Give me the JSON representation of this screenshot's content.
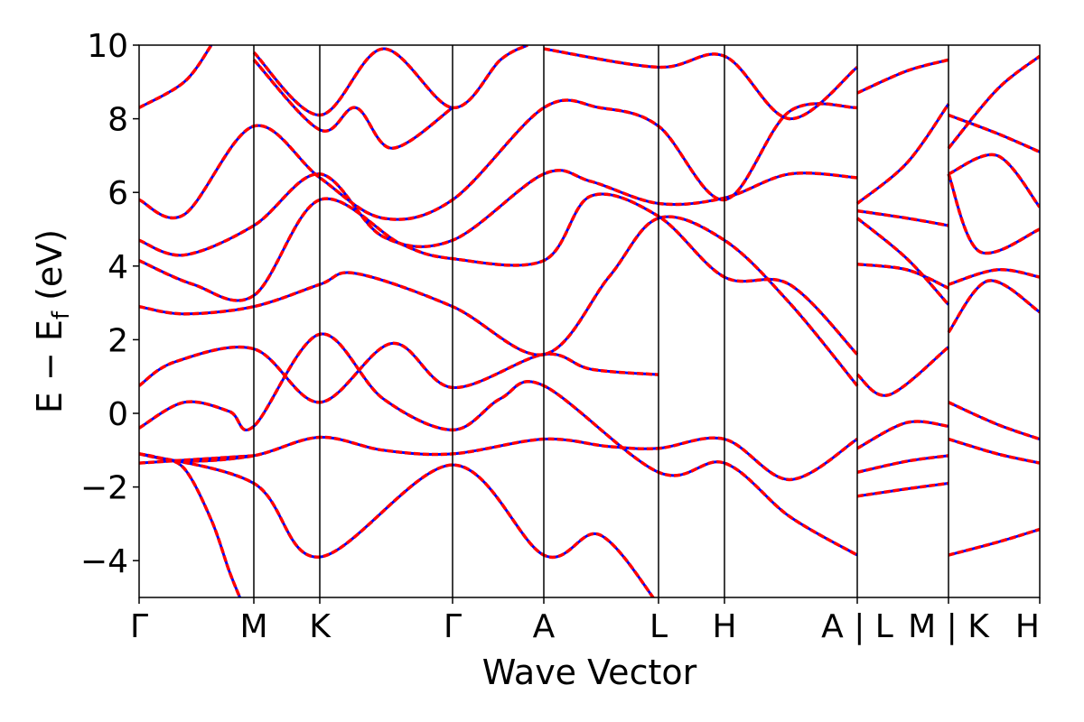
{
  "chart_data": {
    "type": "line",
    "title": "",
    "xlabel": "Wave Vector",
    "ylabel_parts": {
      "pre": "E − E",
      "sub": "f",
      "post": " (eV)"
    },
    "ylim": [
      -5,
      10
    ],
    "yticks": [
      -4,
      -2,
      0,
      2,
      4,
      6,
      8,
      10
    ],
    "ytick_labels": [
      "−4",
      "−2",
      "0",
      "2",
      "4",
      "6",
      "8",
      "10"
    ],
    "kpath": [
      {
        "label": "Γ",
        "x": 0.0
      },
      {
        "label": "M",
        "x": 0.127
      },
      {
        "label": "K",
        "x": 0.2
      },
      {
        "label": "Γ",
        "x": 0.347
      },
      {
        "label": "A",
        "x": 0.448
      },
      {
        "label": "L",
        "x": 0.575
      },
      {
        "label": "H",
        "x": 0.648
      },
      {
        "label": "A | L",
        "x": 0.795
      },
      {
        "label": "M | K",
        "x": 0.896
      },
      {
        "label": "H",
        "x": 0.997
      }
    ],
    "x_max": 0.997,
    "series_colors": {
      "band_a": "#ff0000",
      "band_b": "#0000ff"
    },
    "bands": [
      [
        [
          0.0,
          -1.1
        ],
        [
          0.02,
          -1.2
        ],
        [
          0.05,
          -1.5
        ],
        [
          0.08,
          -2.9
        ],
        [
          0.1,
          -4.3
        ],
        [
          0.115,
          -5.2
        ]
      ],
      [
        [
          0.0,
          -1.1
        ],
        [
          0.05,
          -1.3
        ],
        [
          0.127,
          -1.15
        ],
        [
          0.2,
          -0.65
        ],
        [
          0.27,
          -1.0
        ],
        [
          0.347,
          -1.1
        ],
        [
          0.448,
          -0.7
        ],
        [
          0.52,
          -0.9
        ],
        [
          0.575,
          -0.95
        ],
        [
          0.648,
          -0.7
        ],
        [
          0.72,
          -1.8
        ],
        [
          0.795,
          -0.7
        ]
      ],
      [
        [
          0.0,
          -1.35
        ],
        [
          0.127,
          -1.15
        ]
      ],
      [
        [
          0.0,
          -1.1
        ],
        [
          0.127,
          -1.9
        ],
        [
          0.2,
          -3.9
        ],
        [
          0.347,
          -1.4
        ],
        [
          0.448,
          -3.85
        ],
        [
          0.51,
          -3.3
        ],
        [
          0.575,
          -5.2
        ]
      ],
      [
        [
          0.0,
          -0.4
        ],
        [
          0.05,
          0.3
        ],
        [
          0.1,
          0.05
        ],
        [
          0.127,
          -0.35
        ],
        [
          0.2,
          2.15
        ],
        [
          0.27,
          0.4
        ],
        [
          0.347,
          -0.45
        ],
        [
          0.4,
          0.4
        ],
        [
          0.448,
          0.75
        ],
        [
          0.575,
          -1.6
        ],
        [
          0.648,
          -1.35
        ],
        [
          0.72,
          -2.8
        ],
        [
          0.795,
          -3.85
        ]
      ],
      [
        [
          0.0,
          0.75
        ],
        [
          0.04,
          1.4
        ],
        [
          0.127,
          1.75
        ],
        [
          0.2,
          0.3
        ],
        [
          0.28,
          1.9
        ],
        [
          0.347,
          0.7
        ],
        [
          0.448,
          1.6
        ],
        [
          0.5,
          1.2
        ],
        [
          0.575,
          1.05
        ]
      ],
      [
        [
          0.0,
          2.9
        ],
        [
          0.05,
          2.7
        ],
        [
          0.127,
          2.9
        ],
        [
          0.2,
          3.5
        ],
        [
          0.24,
          3.8
        ],
        [
          0.347,
          2.9
        ],
        [
          0.448,
          1.6
        ],
        [
          0.52,
          3.7
        ],
        [
          0.575,
          5.3
        ],
        [
          0.648,
          4.7
        ],
        [
          0.72,
          3.0
        ],
        [
          0.795,
          0.75
        ]
      ],
      [
        [
          0.0,
          4.15
        ],
        [
          0.06,
          3.5
        ],
        [
          0.127,
          3.2
        ],
        [
          0.2,
          5.8
        ],
        [
          0.29,
          4.6
        ],
        [
          0.347,
          4.2
        ],
        [
          0.448,
          4.15
        ],
        [
          0.5,
          5.9
        ],
        [
          0.575,
          5.35
        ],
        [
          0.648,
          3.7
        ],
        [
          0.72,
          3.5
        ],
        [
          0.795,
          1.6
        ]
      ],
      [
        [
          0.0,
          4.7
        ],
        [
          0.05,
          4.3
        ],
        [
          0.127,
          5.1
        ],
        [
          0.2,
          6.5
        ],
        [
          0.27,
          4.8
        ],
        [
          0.347,
          4.7
        ],
        [
          0.448,
          6.5
        ],
        [
          0.5,
          6.3
        ],
        [
          0.575,
          5.7
        ],
        [
          0.648,
          5.85
        ],
        [
          0.72,
          6.5
        ],
        [
          0.795,
          6.4
        ]
      ],
      [
        [
          0.0,
          5.8
        ],
        [
          0.05,
          5.4
        ],
        [
          0.127,
          7.8
        ],
        [
          0.2,
          6.4
        ],
        [
          0.27,
          5.3
        ],
        [
          0.347,
          5.8
        ],
        [
          0.448,
          8.3
        ],
        [
          0.51,
          8.3
        ],
        [
          0.575,
          7.8
        ],
        [
          0.648,
          5.8
        ],
        [
          0.72,
          8.2
        ],
        [
          0.795,
          8.3
        ]
      ],
      [
        [
          0.0,
          8.3
        ],
        [
          0.05,
          9.0
        ],
        [
          0.08,
          10.0
        ]
      ],
      [
        [
          0.127,
          9.8
        ],
        [
          0.2,
          8.1
        ],
        [
          0.27,
          9.9
        ],
        [
          0.347,
          8.3
        ],
        [
          0.4,
          9.6
        ],
        [
          0.43,
          10.0
        ]
      ],
      [
        [
          0.448,
          9.9
        ],
        [
          0.575,
          9.4
        ],
        [
          0.648,
          9.7
        ],
        [
          0.72,
          8.0
        ],
        [
          0.795,
          9.4
        ]
      ],
      [
        [
          0.127,
          9.6
        ],
        [
          0.2,
          7.7
        ],
        [
          0.24,
          8.3
        ],
        [
          0.28,
          7.2
        ],
        [
          0.347,
          8.3
        ]
      ],
      [
        [
          0.795,
          1.05
        ],
        [
          0.83,
          0.5
        ],
        [
          0.896,
          1.8
        ]
      ],
      [
        [
          0.795,
          -0.95
        ],
        [
          0.85,
          -0.25
        ],
        [
          0.896,
          -0.35
        ]
      ],
      [
        [
          0.795,
          -1.6
        ],
        [
          0.85,
          -1.3
        ],
        [
          0.896,
          -1.15
        ]
      ],
      [
        [
          0.795,
          -2.25
        ],
        [
          0.85,
          -2.05
        ],
        [
          0.896,
          -1.9
        ]
      ],
      [
        [
          0.795,
          4.05
        ],
        [
          0.85,
          3.9
        ],
        [
          0.896,
          3.4
        ]
      ],
      [
        [
          0.795,
          5.3
        ],
        [
          0.85,
          4.2
        ],
        [
          0.896,
          2.95
        ]
      ],
      [
        [
          0.795,
          5.5
        ],
        [
          0.85,
          5.3
        ],
        [
          0.896,
          5.1
        ]
      ],
      [
        [
          0.795,
          5.7
        ],
        [
          0.85,
          6.8
        ],
        [
          0.896,
          8.4
        ]
      ],
      [
        [
          0.795,
          8.7
        ],
        [
          0.85,
          9.3
        ],
        [
          0.896,
          9.6
        ]
      ],
      [
        [
          0.896,
          0.3
        ],
        [
          0.95,
          -0.3
        ],
        [
          0.997,
          -0.7
        ]
      ],
      [
        [
          0.896,
          -0.7
        ],
        [
          0.95,
          -1.1
        ],
        [
          0.997,
          -1.35
        ]
      ],
      [
        [
          0.896,
          -3.85
        ],
        [
          0.95,
          -3.5
        ],
        [
          0.997,
          -3.15
        ]
      ],
      [
        [
          0.896,
          2.2
        ],
        [
          0.94,
          3.6
        ],
        [
          0.997,
          2.75
        ]
      ],
      [
        [
          0.896,
          3.5
        ],
        [
          0.95,
          3.9
        ],
        [
          0.997,
          3.7
        ]
      ],
      [
        [
          0.896,
          6.5
        ],
        [
          0.93,
          4.4
        ],
        [
          0.997,
          5.0
        ]
      ],
      [
        [
          0.896,
          6.5
        ],
        [
          0.95,
          7.0
        ],
        [
          0.997,
          5.6
        ]
      ],
      [
        [
          0.896,
          8.1
        ],
        [
          0.95,
          7.6
        ],
        [
          0.997,
          7.1
        ]
      ],
      [
        [
          0.896,
          7.2
        ],
        [
          0.95,
          8.8
        ],
        [
          0.997,
          9.7
        ]
      ]
    ]
  }
}
